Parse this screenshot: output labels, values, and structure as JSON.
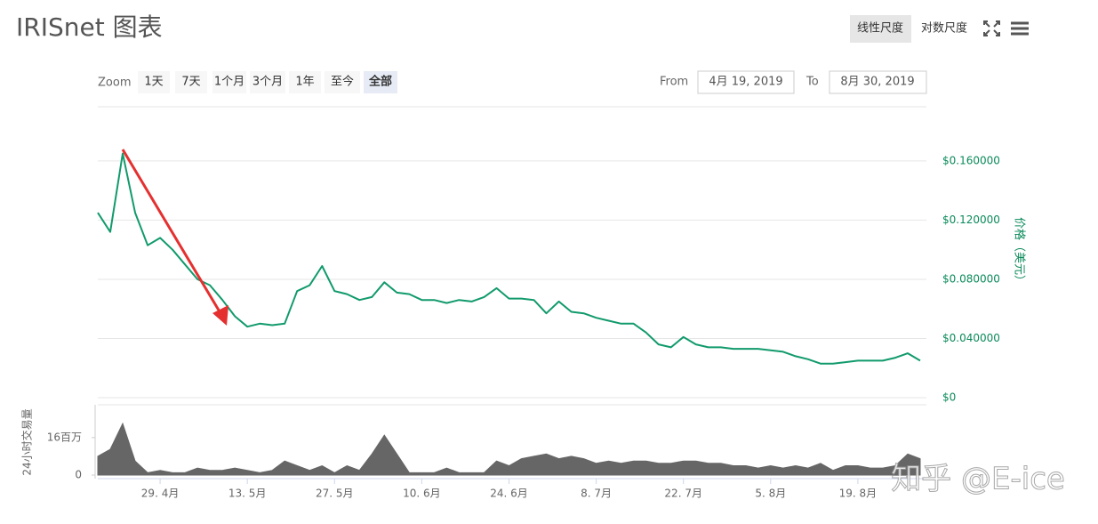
{
  "title": "IRISnet 图表",
  "scale_buttons": {
    "items": [
      "线性尺度",
      "对数尺度"
    ],
    "selected": 0
  },
  "zoom": {
    "label": "Zoom",
    "buttons": [
      "1天",
      "7天",
      "1个月",
      "3个月",
      "1年",
      "至今",
      "全部"
    ],
    "selected": 6
  },
  "range": {
    "from_label": "From",
    "from": "4月 19, 2019",
    "to_label": "To",
    "to": "8月 30, 2019"
  },
  "watermark": "知乎 @E-ice",
  "chart_data": {
    "type": "line",
    "y_label": "价格（美元）",
    "y2_label": "24小时交易量",
    "x": [
      "04-19",
      "04-21",
      "04-23",
      "04-25",
      "04-27",
      "04-29",
      "05-01",
      "05-03",
      "05-05",
      "05-07",
      "05-09",
      "05-11",
      "05-13",
      "05-15",
      "05-17",
      "05-19",
      "05-21",
      "05-23",
      "05-25",
      "05-27",
      "05-29",
      "05-31",
      "06-02",
      "06-04",
      "06-06",
      "06-08",
      "06-10",
      "06-12",
      "06-14",
      "06-16",
      "06-18",
      "06-20",
      "06-22",
      "06-24",
      "06-26",
      "06-28",
      "06-30",
      "07-02",
      "07-04",
      "07-06",
      "07-08",
      "07-10",
      "07-12",
      "07-14",
      "07-16",
      "07-18",
      "07-20",
      "07-22",
      "07-24",
      "07-26",
      "07-28",
      "07-30",
      "08-01",
      "08-03",
      "08-05",
      "08-07",
      "08-09",
      "08-11",
      "08-13",
      "08-15",
      "08-17",
      "08-19",
      "08-21",
      "08-23",
      "08-25",
      "08-27",
      "08-29"
    ],
    "xlim": [
      "04-19",
      "08-30"
    ],
    "xticks": [
      {
        "value": "04-29",
        "label": "29. 4月"
      },
      {
        "value": "05-13",
        "label": "13. 5月"
      },
      {
        "value": "05-27",
        "label": "27. 5月"
      },
      {
        "value": "06-10",
        "label": "10. 6月"
      },
      {
        "value": "06-24",
        "label": "24. 6月"
      },
      {
        "value": "07-08",
        "label": "8. 7月"
      },
      {
        "value": "07-22",
        "label": "22. 7月"
      },
      {
        "value": "08-05",
        "label": "5. 8月"
      },
      {
        "value": "08-19",
        "label": "19. 8月"
      }
    ],
    "ylim": [
      0,
      0.196
    ],
    "yticks": [
      {
        "value": 0,
        "label": "$0"
      },
      {
        "value": 0.04,
        "label": "$0.040000"
      },
      {
        "value": 0.08,
        "label": "$0.080000"
      },
      {
        "value": 0.12,
        "label": "$0.120000"
      },
      {
        "value": 0.16,
        "label": "$0.160000"
      }
    ],
    "y2lim": [
      0,
      30000000
    ],
    "y2ticks": [
      0,
      {
        "value": 16000000,
        "label": "16百万"
      }
    ],
    "grid": true,
    "series": [
      {
        "name": "价格",
        "color": "#119a6c",
        "values": [
          0.125,
          0.112,
          0.165,
          0.125,
          0.103,
          0.108,
          0.1,
          0.09,
          0.08,
          0.076,
          0.066,
          0.055,
          0.048,
          0.05,
          0.049,
          0.05,
          0.072,
          0.076,
          0.089,
          0.072,
          0.07,
          0.066,
          0.068,
          0.078,
          0.071,
          0.07,
          0.066,
          0.066,
          0.064,
          0.066,
          0.065,
          0.068,
          0.074,
          0.067,
          0.067,
          0.066,
          0.057,
          0.065,
          0.058,
          0.057,
          0.054,
          0.052,
          0.05,
          0.05,
          0.044,
          0.036,
          0.034,
          0.041,
          0.036,
          0.034,
          0.034,
          0.033,
          0.033,
          0.033,
          0.032,
          0.031,
          0.028,
          0.026,
          0.023,
          0.023,
          0.024,
          0.025,
          0.025,
          0.025,
          0.027,
          0.03,
          0.025
        ]
      },
      {
        "name": "24小时交易量",
        "color": "#666666",
        "axis": "y2",
        "values": [
          8000000,
          11000000,
          22000000,
          6000000,
          1000000,
          2000000,
          1000000,
          1000000,
          3000000,
          2000000,
          2000000,
          3000000,
          2000000,
          1000000,
          2000000,
          6000000,
          4000000,
          2000000,
          4000000,
          1000000,
          4000000,
          2000000,
          9000000,
          17000000,
          9000000,
          1000000,
          1000000,
          1000000,
          3000000,
          1000000,
          1000000,
          1000000,
          6000000,
          4000000,
          7000000,
          8000000,
          9000000,
          7000000,
          8000000,
          7000000,
          5000000,
          6000000,
          5000000,
          6000000,
          6000000,
          5000000,
          5000000,
          6000000,
          6000000,
          5000000,
          5000000,
          4000000,
          4000000,
          3000000,
          4000000,
          3000000,
          4000000,
          3000000,
          5000000,
          2000000,
          4000000,
          4000000,
          3000000,
          3000000,
          4000000,
          9000000,
          7000000
        ]
      }
    ]
  }
}
